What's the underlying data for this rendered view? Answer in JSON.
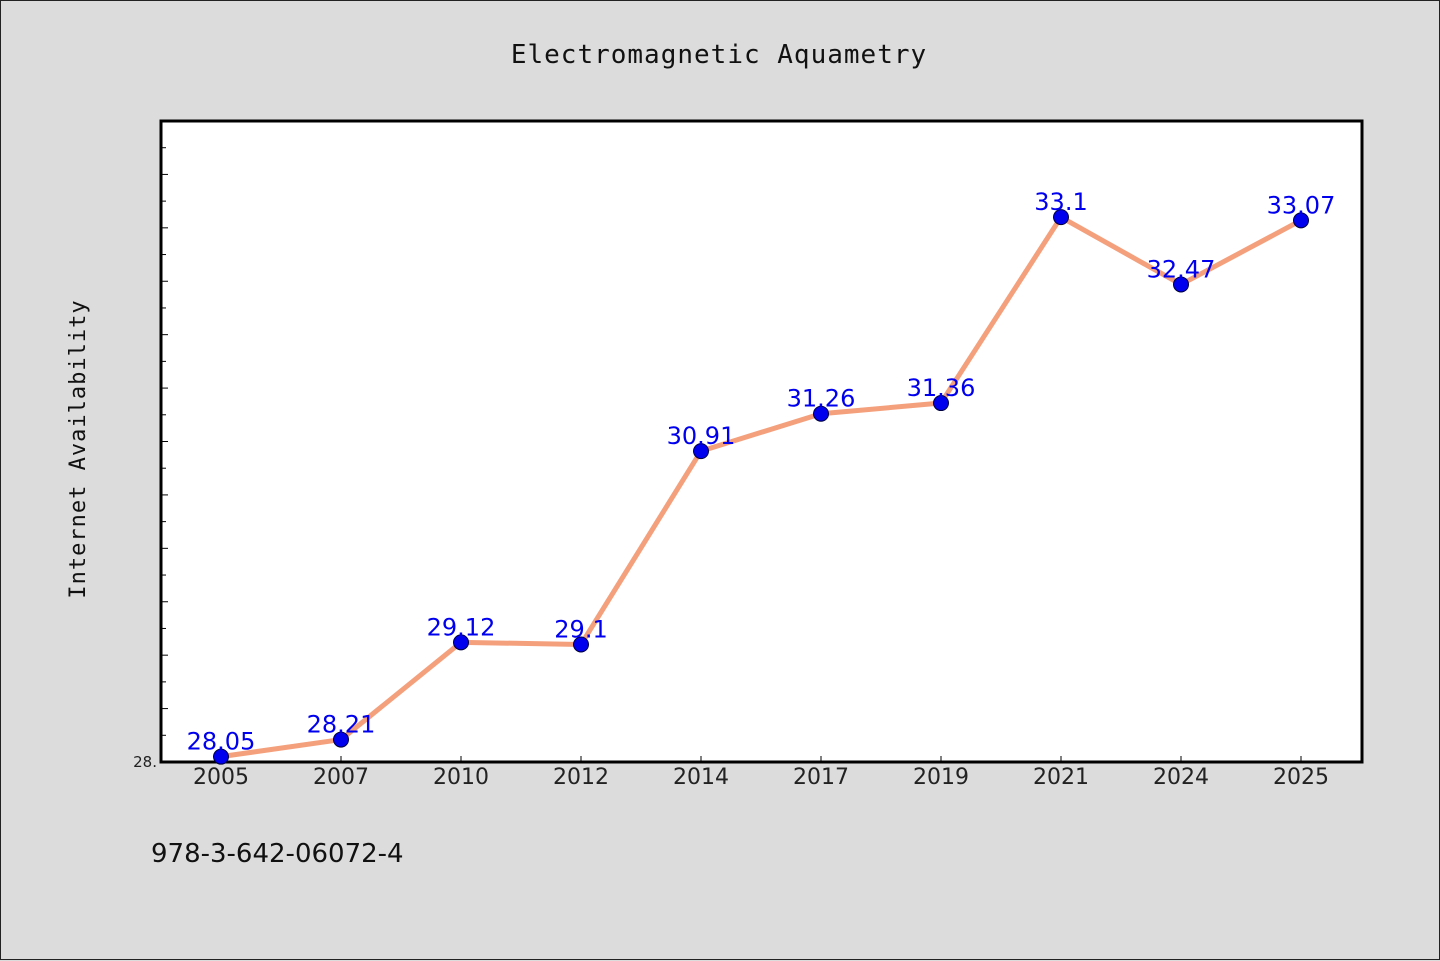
{
  "chart_data": {
    "type": "line",
    "title": "Electromagnetic Aquametry",
    "ylabel": "Internet Availability",
    "xlabel": "",
    "categories": [
      "2005",
      "2007",
      "2010",
      "2012",
      "2014",
      "2017",
      "2019",
      "2021",
      "2024",
      "2025"
    ],
    "series": [
      {
        "values": [
          28.05,
          28.21,
          29.12,
          29.1,
          30.91,
          31.26,
          31.36,
          33.1,
          32.47,
          33.07
        ],
        "data_labels": [
          "28.05",
          "28.21",
          "29.12",
          "29.1",
          "30.91",
          "31.26",
          "31.36",
          "33.1",
          "32.47",
          "33.07"
        ],
        "line_color": "#f4a07c",
        "marker_color": "#0000ee"
      }
    ],
    "ylim": [
      28.0,
      34.0
    ],
    "ytick_label": "28.",
    "grid": false,
    "legend": "none"
  },
  "footnote": "978-3-642-06072-4",
  "colors": {
    "background": "#dcdcdc",
    "plot_background": "#ffffff",
    "axis": "#000000",
    "label_text": "#0000ee"
  }
}
